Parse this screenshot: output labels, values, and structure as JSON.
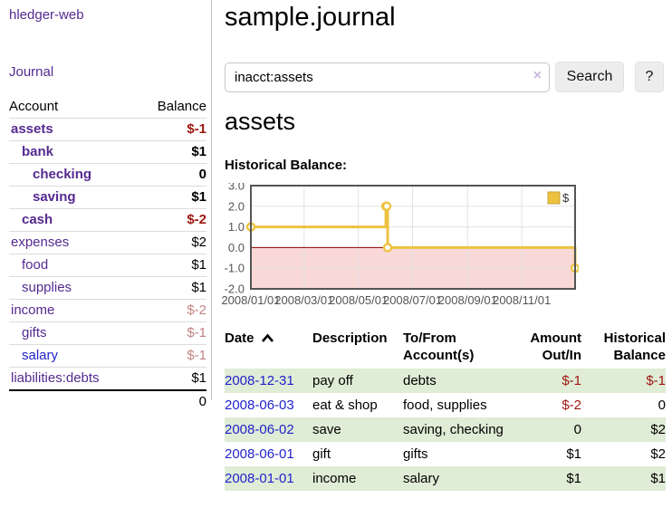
{
  "app": {
    "title": "hledger-web"
  },
  "colors": {
    "link_purple": "#552a90",
    "link_blue": "#2323cc",
    "negative_strong": "#9d1510",
    "negative_muted": "#c28383",
    "row_stripe_green": "#dfecd6",
    "chart_line_gold": "#edc240",
    "chart_negative_fill": "#f9d8d8",
    "chart_zero_line": "#8b0000"
  },
  "sidebar": {
    "journal_link": "Journal",
    "accounts": {
      "header_account": "Account",
      "header_balance": "Balance",
      "rows": [
        {
          "label": "assets",
          "indent": 1,
          "bold": true,
          "color": "purple",
          "balance": "$-1",
          "balance_style": "negstrong"
        },
        {
          "label": "bank",
          "indent": 2,
          "bold": true,
          "color": "purple",
          "balance": "$1",
          "balance_style": "plain"
        },
        {
          "label": "checking",
          "indent": 3,
          "bold": true,
          "color": "purple",
          "balance": "0",
          "balance_style": "plain"
        },
        {
          "label": "saving",
          "indent": 3,
          "bold": true,
          "color": "purple",
          "balance": "$1",
          "balance_style": "plain"
        },
        {
          "label": "cash",
          "indent": 2,
          "bold": true,
          "color": "purple",
          "balance": "$-2",
          "balance_style": "negstrong"
        },
        {
          "label": "expenses",
          "indent": 1,
          "bold": false,
          "color": "purple",
          "balance": "$2",
          "balance_style": "plain"
        },
        {
          "label": "food",
          "indent": 2,
          "bold": false,
          "color": "purple",
          "balance": "$1",
          "balance_style": "plain"
        },
        {
          "label": "supplies",
          "indent": 2,
          "bold": false,
          "color": "purple",
          "balance": "$1",
          "balance_style": "plain"
        },
        {
          "label": "income",
          "indent": 1,
          "bold": false,
          "color": "purple",
          "balance": "$-2",
          "balance_style": "negmuted"
        },
        {
          "label": "gifts",
          "indent": 2,
          "bold": false,
          "color": "purple",
          "balance": "$-1",
          "balance_style": "negmuted"
        },
        {
          "label": "salary",
          "indent": 2,
          "bold": false,
          "color": "blue",
          "balance": "$-1",
          "balance_style": "negmuted"
        },
        {
          "label": "liabilities:debts",
          "indent": 1,
          "bold": false,
          "color": "purple",
          "balance": "$1",
          "balance_style": "plain"
        }
      ],
      "total": "0"
    }
  },
  "main": {
    "title": "sample.journal",
    "search": {
      "value": "inacct:assets",
      "clear_icon": "×",
      "button_label": "Search",
      "help_label": "?"
    },
    "account_heading": "assets",
    "chart_label": "Historical Balance:"
  },
  "chart_data": {
    "type": "line",
    "title": "Historical Balance",
    "step": true,
    "series": [
      {
        "name": "$",
        "color": "#edc240",
        "points": [
          [
            "2008-01-01",
            1
          ],
          [
            "2008-06-01",
            2
          ],
          [
            "2008-06-02",
            2
          ],
          [
            "2008-06-03",
            0
          ],
          [
            "2008-12-31",
            -1
          ]
        ]
      }
    ],
    "x_range": [
      "2008-01-01",
      "2008-12-31"
    ],
    "ylim": [
      -2,
      3
    ],
    "yticks": [
      {
        "value": 3,
        "label": "3.0"
      },
      {
        "value": 2,
        "label": "2.0"
      },
      {
        "value": 1,
        "label": "1.0"
      },
      {
        "value": 0,
        "label": "0.0"
      },
      {
        "value": -1,
        "label": "-1.0"
      },
      {
        "value": -2,
        "label": "-2.0"
      }
    ],
    "xticks": [
      {
        "date": "2008-01-01",
        "label": "2008/01/01"
      },
      {
        "date": "2008-03-01",
        "label": "2008/03/01"
      },
      {
        "date": "2008-05-01",
        "label": "2008/05/01"
      },
      {
        "date": "2008-07-01",
        "label": "2008/07/01"
      },
      {
        "date": "2008-09-01",
        "label": "2008/09/01"
      },
      {
        "date": "2008-11-01",
        "label": "2008/11/01"
      }
    ],
    "legend_position": "top-right",
    "grid": true,
    "negative_region_fill": "#f9d8d8",
    "zero_line_color": "#8b0000"
  },
  "register": {
    "headers": [
      "Date",
      "Description",
      "To/From Account(s)",
      "Amount Out/In",
      "Historical Balance"
    ],
    "rows": [
      {
        "date": "2008-12-31",
        "description": "pay off",
        "accounts": "debts",
        "amount": "$-1",
        "amount_negative": true,
        "balance": "$-1",
        "balance_negative": true,
        "highlight": true
      },
      {
        "date": "2008-06-03",
        "description": "eat & shop",
        "accounts": "food, supplies",
        "amount": "$-2",
        "amount_negative": true,
        "balance": "0",
        "balance_negative": false,
        "highlight": false
      },
      {
        "date": "2008-06-02",
        "description": "save",
        "accounts": "saving, checking",
        "amount": "0",
        "amount_negative": false,
        "balance": "$2",
        "balance_negative": false,
        "highlight": true
      },
      {
        "date": "2008-06-01",
        "description": "gift",
        "accounts": "gifts",
        "amount": "$1",
        "amount_negative": false,
        "balance": "$2",
        "balance_negative": false,
        "highlight": false
      },
      {
        "date": "2008-01-01",
        "description": "income",
        "accounts": "salary",
        "amount": "$1",
        "amount_negative": false,
        "balance": "$1",
        "balance_negative": false,
        "highlight": true
      }
    ]
  }
}
